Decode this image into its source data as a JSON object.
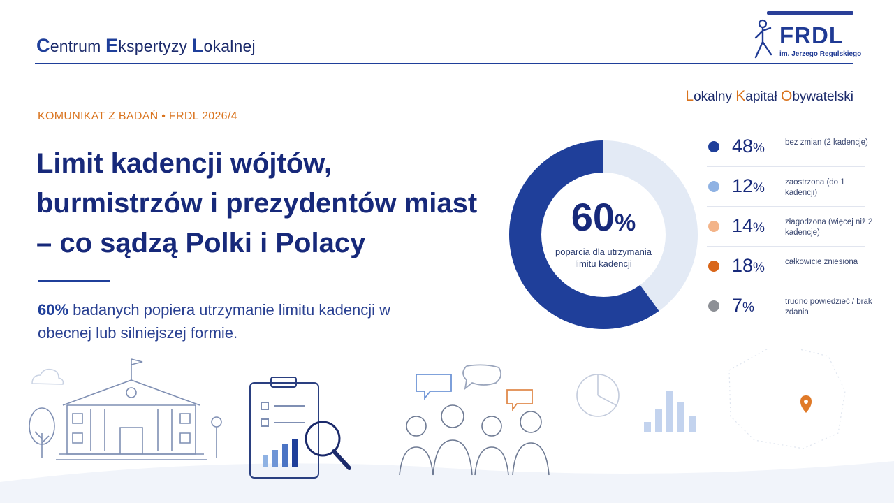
{
  "header": {
    "brand_c": "C",
    "brand_rest1": "entrum ",
    "brand_e": "E",
    "brand_rest2": "kspertyzy ",
    "brand_l": "L",
    "brand_rest3": "okalnej"
  },
  "logo": {
    "name": "FRDL",
    "sub": "im. Jerzego Regulskiego"
  },
  "subtitle_right": {
    "l": "L",
    "rest1": "okalny ",
    "k": "K",
    "rest2": "apitał ",
    "o": "O",
    "rest3": "bywatelski"
  },
  "kicker": "KOMUNIKAT Z BADAŃ • FRDL 2026/4",
  "headline": "Limit kadencji wójtów, burmistrzów i prezydentów miast – co sądzą Polki i Polacy",
  "lead": {
    "highlight": "60%",
    "text": " badanych popiera utrzymanie limitu kadencji w obecnej lub silniejszej formie."
  },
  "chart_data": {
    "type": "pie",
    "donut_value": 60,
    "center": {
      "value": "60",
      "unit": "%",
      "label": "poparcia dla utrzymania limitu kadencji"
    },
    "legend": [
      {
        "value": "48",
        "unit": "%",
        "label": "bez zmian (2 kadencje)",
        "color": "#1f3f9a"
      },
      {
        "value": "12",
        "unit": "%",
        "label": "zaostrzona (do 1 kadencji)",
        "color": "#8fb2e3"
      },
      {
        "value": "14",
        "unit": "%",
        "label": "złagodzona (więcej niż 2 kadencje)",
        "color": "#f3b489"
      },
      {
        "value": "18",
        "unit": "%",
        "label": "całkowicie zniesiona",
        "color": "#d9661a"
      },
      {
        "value": "7",
        "unit": "%",
        "label": "trudno powiedzieć / brak zdania",
        "color": "#8d9096"
      }
    ],
    "colors": {
      "filled": "#1f3f9a",
      "remaining": "#e3eaf5"
    }
  }
}
